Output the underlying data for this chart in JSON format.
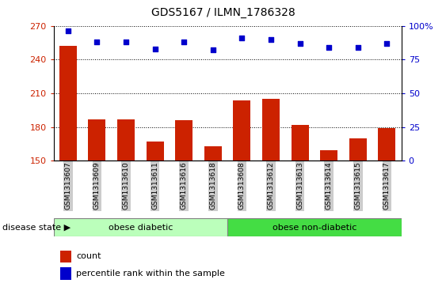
{
  "title": "GDS5167 / ILMN_1786328",
  "samples": [
    "GSM1313607",
    "GSM1313609",
    "GSM1313610",
    "GSM1313611",
    "GSM1313616",
    "GSM1313618",
    "GSM1313608",
    "GSM1313612",
    "GSM1313613",
    "GSM1313614",
    "GSM1313615",
    "GSM1313617"
  ],
  "counts": [
    252,
    187,
    187,
    167,
    186,
    163,
    204,
    205,
    182,
    159,
    170,
    179
  ],
  "percentile_ranks": [
    96,
    88,
    88,
    83,
    88,
    82,
    91,
    90,
    87,
    84,
    84,
    87
  ],
  "ylim_left": [
    150,
    270
  ],
  "ylim_right": [
    0,
    100
  ],
  "yticks_left": [
    150,
    180,
    210,
    240,
    270
  ],
  "yticks_right": [
    0,
    25,
    50,
    75,
    100
  ],
  "bar_color": "#cc2200",
  "dot_color": "#0000cc",
  "group1_label": "obese diabetic",
  "group2_label": "obese non-diabetic",
  "group1_bg": "#bbffbb",
  "group2_bg": "#44dd44",
  "tick_bg": "#cccccc",
  "disease_state_label": "disease state",
  "legend_count_label": "count",
  "legend_pct_label": "percentile rank within the sample"
}
